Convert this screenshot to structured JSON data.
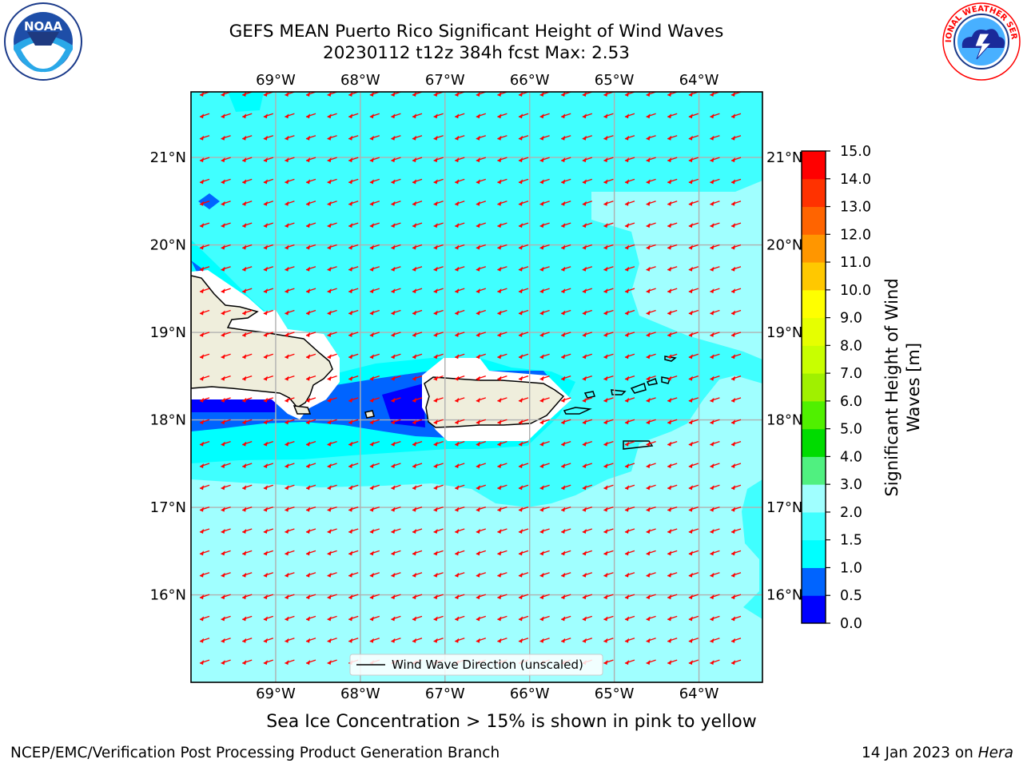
{
  "header": {
    "title_line1": "GEFS MEAN Puerto Rico Significant Height of Wind Waves",
    "title_line2": "20230112 t12z 384h fcst   Max: 2.53"
  },
  "logos": {
    "noaa": {
      "text": "NOAA",
      "ring_text": "NATIONAL OCEANIC AND ATMOSPHERIC ADMINISTRATION · U.S. DEPARTMENT OF COMMERCE"
    },
    "nws": {
      "ring_text": "NATIONAL WEATHER SERVICE"
    }
  },
  "map": {
    "lon_range": [
      -70.0,
      -63.25
    ],
    "lat_range": [
      15.0,
      21.75
    ],
    "lon_ticks": [
      {
        "value": -69,
        "label": "69°W"
      },
      {
        "value": -68,
        "label": "68°W"
      },
      {
        "value": -67,
        "label": "67°W"
      },
      {
        "value": -66,
        "label": "66°W"
      },
      {
        "value": -65,
        "label": "65°W"
      },
      {
        "value": -64,
        "label": "64°W"
      }
    ],
    "lat_ticks": [
      {
        "value": 21,
        "label": "21°N"
      },
      {
        "value": 20,
        "label": "20°N"
      },
      {
        "value": 19,
        "label": "19°N"
      },
      {
        "value": 18,
        "label": "18°N"
      },
      {
        "value": 17,
        "label": "17°N"
      },
      {
        "value": 16,
        "label": "16°N"
      }
    ],
    "grid": true,
    "legend": {
      "label": "Wind Wave Direction (unscaled)",
      "placement": "bottom-center"
    },
    "arrow_color": "#ff0000",
    "land_color": "#efeedc",
    "fill_colors": {
      "0.5-1.0": "#0064ff",
      "1.0-1.5": "#00ffff",
      "1.5-2.0": "#40ffff",
      "2.0-3.0": "#a0ffff"
    }
  },
  "colorbar": {
    "label": "Significant Height of Wind Waves [m]",
    "label_line1": "Significant Height of Wind",
    "label_line2": "Waves [m]",
    "levels": [
      "0.0",
      "0.5",
      "1.0",
      "1.5",
      "2.0",
      "3.0",
      "4.0",
      "5.0",
      "6.0",
      "7.0",
      "8.0",
      "9.0",
      "10.0",
      "11.0",
      "12.0",
      "13.0",
      "14.0",
      "15.0"
    ],
    "colors": [
      "#0000ff",
      "#0064ff",
      "#00ffff",
      "#40ffff",
      "#a0ffff",
      "#50f080",
      "#00dc00",
      "#50f000",
      "#a0f000",
      "#c8ff00",
      "#e6ff00",
      "#ffff00",
      "#ffc800",
      "#ff9600",
      "#ff6400",
      "#ff3200",
      "#ff0000"
    ]
  },
  "notes": {
    "ice": "Sea Ice Concentration > 15% is shown in pink to yellow"
  },
  "footer": {
    "left": "NCEP/EMC/Verification Post Processing Product Generation Branch",
    "right_prefix": "14 Jan 2023 on ",
    "right_machine": "Hera"
  }
}
